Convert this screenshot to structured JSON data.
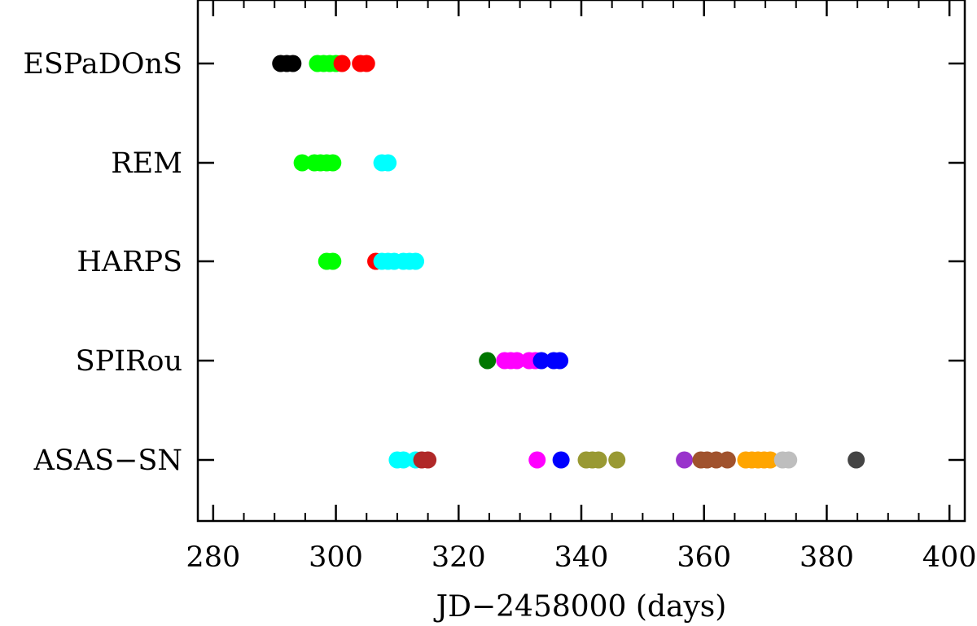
{
  "chart_data": {
    "type": "scatter",
    "title": "",
    "xlabel": "JD−2458000 (days)",
    "ylabel": "",
    "xlim": [
      277.5,
      402.5
    ],
    "xticks": [
      280,
      300,
      320,
      340,
      360,
      380,
      400
    ],
    "categories": [
      "ESPaDOnS",
      "REM",
      "HARPS",
      "SPIRou",
      "ASAS−SN"
    ],
    "grid": false,
    "legend": "none",
    "groups": [
      {
        "color": "#000000",
        "points": [
          {
            "cat": 0,
            "x": 291.0
          },
          {
            "cat": 0,
            "x": 292.0
          },
          {
            "cat": 0,
            "x": 293.0
          }
        ]
      },
      {
        "color": "#00ff00",
        "points": [
          {
            "cat": 0,
            "x": 297.0
          },
          {
            "cat": 0,
            "x": 298.0
          },
          {
            "cat": 0,
            "x": 299.0
          },
          {
            "cat": 0,
            "x": 300.0
          },
          {
            "cat": 1,
            "x": 294.5
          },
          {
            "cat": 1,
            "x": 296.5
          },
          {
            "cat": 1,
            "x": 297.5
          },
          {
            "cat": 1,
            "x": 298.5
          },
          {
            "cat": 1,
            "x": 299.5
          },
          {
            "cat": 2,
            "x": 298.5
          },
          {
            "cat": 2,
            "x": 299.5
          }
        ]
      },
      {
        "color": "#ff0000",
        "points": [
          {
            "cat": 0,
            "x": 301.0
          },
          {
            "cat": 0,
            "x": 304.0
          },
          {
            "cat": 0,
            "x": 305.0
          },
          {
            "cat": 2,
            "x": 306.5
          }
        ]
      },
      {
        "color": "#00ffff",
        "points": [
          {
            "cat": 1,
            "x": 307.5
          },
          {
            "cat": 1,
            "x": 308.5
          },
          {
            "cat": 2,
            "x": 307.5
          },
          {
            "cat": 2,
            "x": 308.5
          },
          {
            "cat": 2,
            "x": 309.5
          },
          {
            "cat": 2,
            "x": 311.0
          },
          {
            "cat": 2,
            "x": 312.0
          },
          {
            "cat": 2,
            "x": 313.0
          },
          {
            "cat": 4,
            "x": 310.0
          },
          {
            "cat": 4,
            "x": 311.0
          },
          {
            "cat": 4,
            "x": 313.0
          }
        ]
      },
      {
        "color": "#007700",
        "points": [
          {
            "cat": 3,
            "x": 324.7
          }
        ]
      },
      {
        "color": "#ff00ff",
        "points": [
          {
            "cat": 3,
            "x": 327.5
          },
          {
            "cat": 3,
            "x": 328.5
          },
          {
            "cat": 3,
            "x": 329.5
          },
          {
            "cat": 3,
            "x": 331.5
          },
          {
            "cat": 3,
            "x": 332.5
          },
          {
            "cat": 4,
            "x": 332.8
          }
        ]
      },
      {
        "color": "#0000ff",
        "points": [
          {
            "cat": 3,
            "x": 333.5
          },
          {
            "cat": 3,
            "x": 335.5
          },
          {
            "cat": 3,
            "x": 336.5
          },
          {
            "cat": 4,
            "x": 336.7
          }
        ]
      },
      {
        "color": "#b02828",
        "points": [
          {
            "cat": 4,
            "x": 314.0
          },
          {
            "cat": 4,
            "x": 315.0
          }
        ]
      },
      {
        "color": "#999933",
        "points": [
          {
            "cat": 4,
            "x": 340.8
          },
          {
            "cat": 4,
            "x": 341.8
          },
          {
            "cat": 4,
            "x": 342.8
          },
          {
            "cat": 4,
            "x": 345.8
          }
        ]
      },
      {
        "color": "#9933cc",
        "points": [
          {
            "cat": 4,
            "x": 356.8
          }
        ]
      },
      {
        "color": "#a0522d",
        "points": [
          {
            "cat": 4,
            "x": 359.5
          },
          {
            "cat": 4,
            "x": 360.5
          },
          {
            "cat": 4,
            "x": 362.0
          },
          {
            "cat": 4,
            "x": 363.8
          }
        ]
      },
      {
        "color": "#ffa500",
        "points": [
          {
            "cat": 4,
            "x": 366.8
          },
          {
            "cat": 4,
            "x": 367.8
          },
          {
            "cat": 4,
            "x": 368.8
          },
          {
            "cat": 4,
            "x": 369.8
          },
          {
            "cat": 4,
            "x": 370.8
          }
        ]
      },
      {
        "color": "#bebebe",
        "points": [
          {
            "cat": 4,
            "x": 372.8
          },
          {
            "cat": 4,
            "x": 373.8
          }
        ]
      },
      {
        "color": "#444444",
        "points": [
          {
            "cat": 4,
            "x": 384.8
          }
        ]
      }
    ]
  }
}
